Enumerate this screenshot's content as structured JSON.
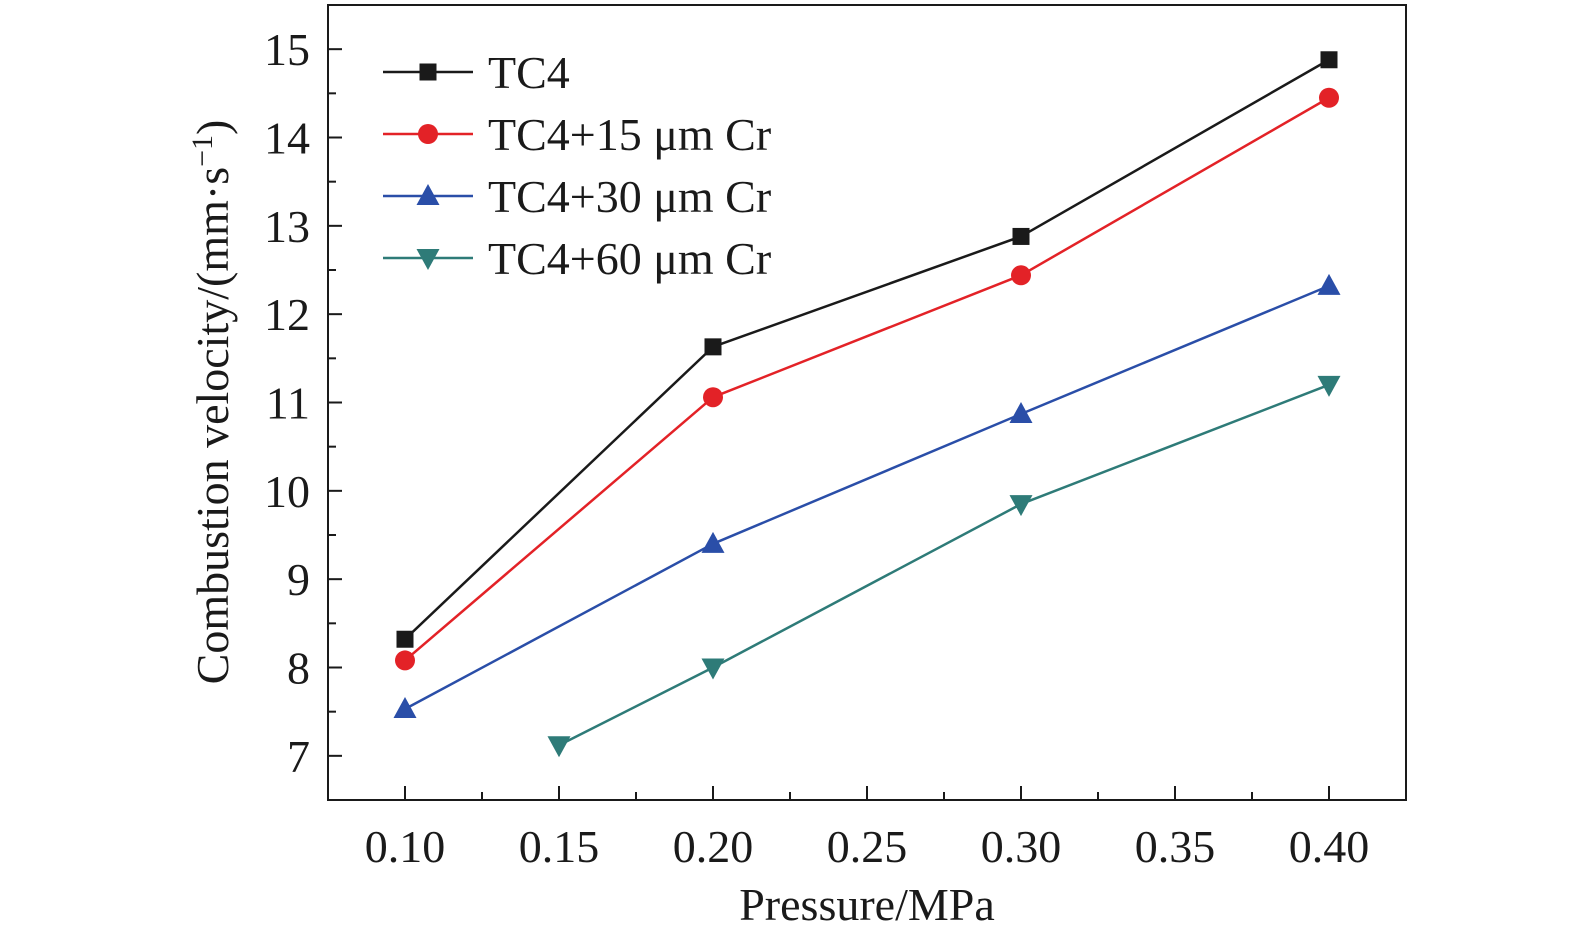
{
  "chart_data": {
    "type": "line",
    "xlabel": "Pressure/MPa",
    "ylabel": {
      "prefix": "Combustion velocity/(mm·s",
      "superscript": "−1",
      "suffix": ")"
    },
    "xlim": [
      0.075,
      0.425
    ],
    "ylim": [
      6.5,
      15.5
    ],
    "xticks": [
      "0.10",
      "0.15",
      "0.20",
      "0.25",
      "0.30",
      "0.35",
      "0.40"
    ],
    "yticks": [
      "7",
      "8",
      "9",
      "10",
      "11",
      "12",
      "13",
      "14",
      "15"
    ],
    "legend_position": "top-left",
    "series": [
      {
        "name": "TC4",
        "color": "#1a1a1a",
        "marker": "square",
        "x": [
          0.1,
          0.2,
          0.3,
          0.4
        ],
        "y": [
          8.32,
          11.63,
          12.88,
          14.88
        ]
      },
      {
        "name": "TC4+15 μm Cr",
        "color": "#e32227",
        "marker": "circle",
        "x": [
          0.1,
          0.2,
          0.3,
          0.4
        ],
        "y": [
          8.08,
          11.06,
          12.44,
          14.45
        ]
      },
      {
        "name": "TC4+30 μm Cr",
        "color": "#2a4ea8",
        "marker": "triangle-up",
        "x": [
          0.1,
          0.2,
          0.3,
          0.4
        ],
        "y": [
          7.53,
          9.4,
          10.87,
          12.32
        ]
      },
      {
        "name": "TC4+60 μm Cr",
        "color": "#2e7b78",
        "marker": "triangle-down",
        "x": [
          0.15,
          0.2,
          0.3,
          0.4
        ],
        "y": [
          7.12,
          8.0,
          9.85,
          11.2
        ]
      }
    ]
  }
}
